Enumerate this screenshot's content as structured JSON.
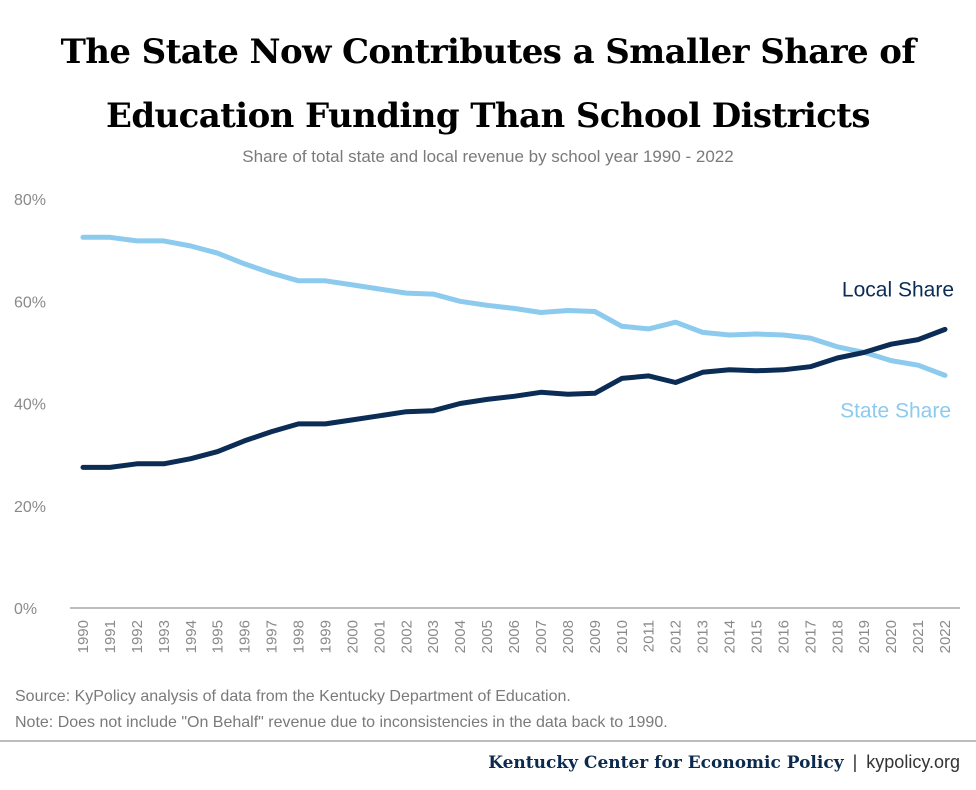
{
  "title_lines": [
    "The State Now Contributes a Smaller Share of",
    "Education Funding Than School Districts"
  ],
  "subtitle": "Share of total state and local revenue by school year 1990 - 2022",
  "notes": {
    "source": "Source: KyPolicy analysis of data from the Kentucky Department of Education.",
    "note": "Note: Does not include \"On Behalf\" revenue due to inconsistencies in the data back to 1990."
  },
  "footer": {
    "organization": "Kentucky Center for Economic Policy",
    "separator": "|",
    "website": "kypolicy.org"
  },
  "colors": {
    "local": "#0b2c55",
    "state": "#8ccaee",
    "axis": "#bdbdbd",
    "tick_text": "#8a8a8a"
  },
  "chart_data": {
    "type": "line",
    "title": "The State Now Contributes a Smaller Share of Education Funding Than School Districts",
    "subtitle": "Share of total state and local revenue by school year 1990 - 2022",
    "x": [
      1990,
      1991,
      1992,
      1993,
      1994,
      1995,
      1996,
      1997,
      1998,
      1999,
      2000,
      2001,
      2002,
      2003,
      2004,
      2005,
      2006,
      2007,
      2008,
      2009,
      2010,
      2011,
      2012,
      2013,
      2014,
      2015,
      2016,
      2017,
      2018,
      2019,
      2020,
      2021,
      2022
    ],
    "x_tick_labels": [
      "1990",
      "1991",
      "1992",
      "1993",
      "1994",
      "1995",
      "1996",
      "1997",
      "1998",
      "1999",
      "2000",
      "2001",
      "2002",
      "2003",
      "2004",
      "2005",
      "2006",
      "2007",
      "2008",
      "2009",
      "2010",
      "2011",
      "2012",
      "2013",
      "2014",
      "2015",
      "2016",
      "2017",
      "2018",
      "2019",
      "2020",
      "2021",
      "2022"
    ],
    "y_tick_labels": [
      "0%",
      "20%",
      "40%",
      "60%",
      "80%"
    ],
    "y_ticks": [
      0,
      20,
      40,
      60,
      80
    ],
    "ylim": [
      0,
      80
    ],
    "grid": false,
    "legend": "direct labels at right end of lines",
    "series": [
      {
        "name": "Local Share",
        "color": "#0b2c55",
        "values": [
          27.5,
          27.5,
          28.2,
          28.2,
          29.2,
          30.6,
          32.7,
          34.5,
          36.0,
          36.0,
          36.8,
          37.6,
          38.4,
          38.6,
          40.0,
          40.8,
          41.4,
          42.2,
          41.8,
          42.0,
          44.9,
          45.4,
          44.1,
          46.1,
          46.6,
          46.4,
          46.6,
          47.2,
          48.9,
          50.0,
          51.6,
          52.5,
          54.5
        ]
      },
      {
        "name": "State Share",
        "color": "#8ccaee",
        "values": [
          72.5,
          72.5,
          71.8,
          71.8,
          70.8,
          69.4,
          67.3,
          65.5,
          64.0,
          64.0,
          63.2,
          62.4,
          61.6,
          61.4,
          60.0,
          59.2,
          58.6,
          57.8,
          58.2,
          58.0,
          55.1,
          54.6,
          55.9,
          53.9,
          53.4,
          53.6,
          53.4,
          52.8,
          51.1,
          50.0,
          48.4,
          47.5,
          45.5
        ]
      }
    ]
  }
}
